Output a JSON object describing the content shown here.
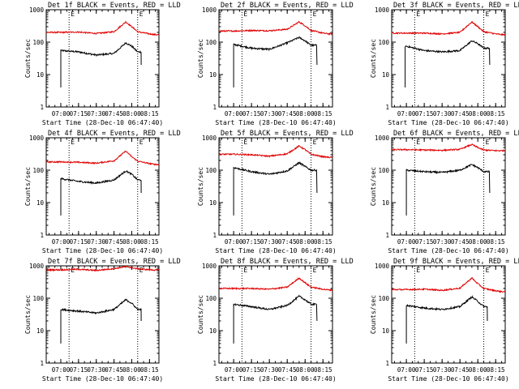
{
  "figure": {
    "ylabel": "Counts/sec",
    "xlabel": "Start Time (28-Dec-10 06:47:40)",
    "x_tick_labels": [
      "07:00",
      "07:15",
      "07:30",
      "07:45",
      "08:00",
      "08:15"
    ],
    "y_tick_labels": [
      "1",
      "10",
      "100",
      "1000"
    ],
    "marker_text": "E"
  },
  "colors": {
    "events": "#000000",
    "lld": "#e00000",
    "axes": "#000000",
    "background": "#ffffff"
  },
  "chart_data": [
    {
      "type": "line",
      "panel": 1,
      "title": "Det 1f BLACK = Events, RED = LLD",
      "xlabel": "Start Time (28-Dec-10 06:47:40)",
      "ylabel": "Counts/sec",
      "x_range": [
        "06:47:40",
        "08:23:00"
      ],
      "ylim": [
        1,
        1000
      ],
      "y_scale": "log",
      "vlines": [
        "07:07",
        "08:05"
      ],
      "markers": [
        "E",
        "E"
      ],
      "x": [
        "07:00",
        "07:15",
        "07:30",
        "07:45",
        "07:55",
        "08:00",
        "08:05",
        "08:15",
        "08:20"
      ],
      "series": [
        {
          "name": "BLACK = Events",
          "start": "07:00",
          "end": "08:08",
          "values": [
            55,
            50,
            40,
            45,
            95,
            75,
            50,
            null,
            null
          ]
        },
        {
          "name": "RED = LLD",
          "values": [
            200,
            205,
            185,
            210,
            420,
            300,
            210,
            180,
            170
          ]
        }
      ]
    },
    {
      "type": "line",
      "panel": 2,
      "title": "Det 2f BLACK = Events, RED = LLD",
      "xlabel": "Start Time (28-Dec-10 06:47:40)",
      "ylabel": "Counts/sec",
      "x_range": [
        "06:47:40",
        "08:23:00"
      ],
      "ylim": [
        1,
        1000
      ],
      "y_scale": "log",
      "vlines": [
        "07:07",
        "08:05"
      ],
      "markers": [
        "E",
        "E"
      ],
      "x": [
        "07:00",
        "07:15",
        "07:30",
        "07:45",
        "07:55",
        "08:00",
        "08:05",
        "08:15",
        "08:20"
      ],
      "series": [
        {
          "name": "BLACK = Events",
          "start": "07:00",
          "end": "08:10",
          "values": [
            85,
            65,
            60,
            95,
            140,
            110,
            80,
            null,
            null
          ]
        },
        {
          "name": "RED = LLD",
          "values": [
            220,
            230,
            225,
            250,
            420,
            320,
            230,
            190,
            180
          ]
        }
      ]
    },
    {
      "type": "line",
      "panel": 3,
      "title": "Det 3f BLACK = Events, RED = LLD",
      "xlabel": "Start Time (28-Dec-10 06:47:40)",
      "ylabel": "Counts/sec",
      "x_range": [
        "06:47:40",
        "08:23:00"
      ],
      "ylim": [
        1,
        1000
      ],
      "y_scale": "log",
      "vlines": [
        "07:07",
        "08:05"
      ],
      "markers": [
        "E",
        "E"
      ],
      "x": [
        "07:00",
        "07:15",
        "07:30",
        "07:45",
        "07:55",
        "08:00",
        "08:05",
        "08:15",
        "08:20"
      ],
      "series": [
        {
          "name": "BLACK = Events",
          "start": "06:59",
          "end": "08:10",
          "values": [
            75,
            55,
            50,
            55,
            110,
            90,
            65,
            null,
            null
          ]
        },
        {
          "name": "RED = LLD",
          "values": [
            190,
            190,
            180,
            200,
            420,
            300,
            210,
            180,
            170
          ]
        }
      ]
    },
    {
      "type": "line",
      "panel": 4,
      "title": "Det 4f BLACK = Events, RED = LLD",
      "xlabel": "Start Time (28-Dec-10 06:47:40)",
      "ylabel": "Counts/sec",
      "x_range": [
        "06:47:40",
        "08:23:00"
      ],
      "ylim": [
        1,
        1000
      ],
      "y_scale": "log",
      "vlines": [
        "07:07",
        "08:05"
      ],
      "markers": [
        "E",
        "E"
      ],
      "x": [
        "07:00",
        "07:15",
        "07:30",
        "07:45",
        "07:55",
        "08:00",
        "08:05",
        "08:15",
        "08:20"
      ],
      "series": [
        {
          "name": "BLACK = Events",
          "start": "07:00",
          "end": "08:08",
          "values": [
            55,
            45,
            40,
            50,
            95,
            75,
            50,
            null,
            null
          ]
        },
        {
          "name": "RED = LLD",
          "values": [
            180,
            175,
            165,
            195,
            390,
            260,
            190,
            160,
            150
          ]
        }
      ]
    },
    {
      "type": "line",
      "panel": 5,
      "title": "Det 5f BLACK = Events, RED = LLD",
      "xlabel": "Start Time (28-Dec-10 06:47:40)",
      "ylabel": "Counts/sec",
      "x_range": [
        "06:47:40",
        "08:23:00"
      ],
      "ylim": [
        1,
        1000
      ],
      "y_scale": "log",
      "vlines": [
        "07:07",
        "08:05"
      ],
      "markers": [
        "E",
        "E"
      ],
      "x": [
        "07:00",
        "07:15",
        "07:30",
        "07:45",
        "07:55",
        "08:00",
        "08:05",
        "08:15",
        "08:20"
      ],
      "series": [
        {
          "name": "BLACK = Events",
          "start": "07:00",
          "end": "08:10",
          "values": [
            120,
            90,
            75,
            95,
            170,
            130,
            100,
            null,
            null
          ]
        },
        {
          "name": "RED = LLD",
          "values": [
            310,
            300,
            270,
            320,
            560,
            430,
            310,
            260,
            250
          ]
        }
      ]
    },
    {
      "type": "line",
      "panel": 6,
      "title": "Det 6f BLACK = Events, RED = LLD",
      "xlabel": "Start Time (28-Dec-10 06:47:40)",
      "ylabel": "Counts/sec",
      "x_range": [
        "06:47:40",
        "08:23:00"
      ],
      "ylim": [
        1,
        1000
      ],
      "y_scale": "log",
      "vlines": [
        "07:07",
        "08:05"
      ],
      "markers": [
        "E",
        "E"
      ],
      "x": [
        "07:00",
        "07:15",
        "07:30",
        "07:45",
        "07:55",
        "08:00",
        "08:05",
        "08:15",
        "08:20"
      ],
      "series": [
        {
          "name": "BLACK = Events",
          "start": "07:00",
          "end": "08:10",
          "values": [
            100,
            90,
            85,
            100,
            150,
            120,
            90,
            null,
            null
          ]
        },
        {
          "name": "RED = LLD",
          "values": [
            430,
            420,
            410,
            440,
            620,
            500,
            420,
            400,
            400
          ]
        }
      ]
    },
    {
      "type": "line",
      "panel": 7,
      "title": "Det 7f BLACK = Events, RED = LLD",
      "xlabel": "Start Time (28-Dec-10 06:47:40)",
      "ylabel": "Counts/sec",
      "x_range": [
        "06:47:40",
        "08:23:00"
      ],
      "ylim": [
        1,
        1000
      ],
      "y_scale": "log",
      "vlines": [
        "07:07",
        "08:05"
      ],
      "markers": [
        "E",
        "E"
      ],
      "x": [
        "07:00",
        "07:15",
        "07:30",
        "07:45",
        "07:55",
        "08:00",
        "08:05",
        "08:15",
        "08:20"
      ],
      "series": [
        {
          "name": "BLACK = Events",
          "start": "07:00",
          "end": "08:08",
          "values": [
            45,
            40,
            35,
            45,
            90,
            70,
            45,
            null,
            null
          ]
        },
        {
          "name": "RED = LLD",
          "values": [
            750,
            780,
            720,
            820,
            950,
            880,
            800,
            760,
            740
          ]
        }
      ]
    },
    {
      "type": "line",
      "panel": 8,
      "title": "Det 8f BLACK = Events, RED = LLD",
      "xlabel": "Start Time (28-Dec-10 06:47:40)",
      "ylabel": "Counts/sec",
      "x_range": [
        "06:47:40",
        "08:23:00"
      ],
      "ylim": [
        1,
        1000
      ],
      "y_scale": "log",
      "vlines": [
        "07:07",
        "08:05"
      ],
      "markers": [
        "E",
        "E"
      ],
      "x": [
        "07:00",
        "07:15",
        "07:30",
        "07:45",
        "07:55",
        "08:00",
        "08:05",
        "08:15",
        "08:20"
      ],
      "series": [
        {
          "name": "BLACK = Events",
          "start": "07:00",
          "end": "08:10",
          "values": [
            65,
            55,
            45,
            60,
            115,
            90,
            65,
            null,
            null
          ]
        },
        {
          "name": "RED = LLD",
          "values": [
            200,
            200,
            190,
            220,
            420,
            300,
            220,
            190,
            180
          ]
        }
      ]
    },
    {
      "type": "line",
      "panel": 9,
      "title": "Det 9f BLACK = Events, RED = LLD",
      "xlabel": "Start Time (28-Dec-10 06:47:40)",
      "ylabel": "Counts/sec",
      "x_range": [
        "06:47:40",
        "08:23:00"
      ],
      "ylim": [
        1,
        1000
      ],
      "y_scale": "log",
      "vlines": [
        "07:07",
        "08:05"
      ],
      "markers": [
        "E",
        "E"
      ],
      "x": [
        "07:00",
        "07:15",
        "07:30",
        "07:45",
        "07:55",
        "08:00",
        "08:05",
        "08:15",
        "08:20"
      ],
      "series": [
        {
          "name": "BLACK = Events",
          "start": "07:00",
          "end": "08:08",
          "values": [
            60,
            50,
            45,
            55,
            110,
            80,
            55,
            null,
            null
          ]
        },
        {
          "name": "RED = LLD",
          "values": [
            185,
            190,
            175,
            205,
            420,
            280,
            200,
            170,
            160
          ]
        }
      ]
    }
  ]
}
